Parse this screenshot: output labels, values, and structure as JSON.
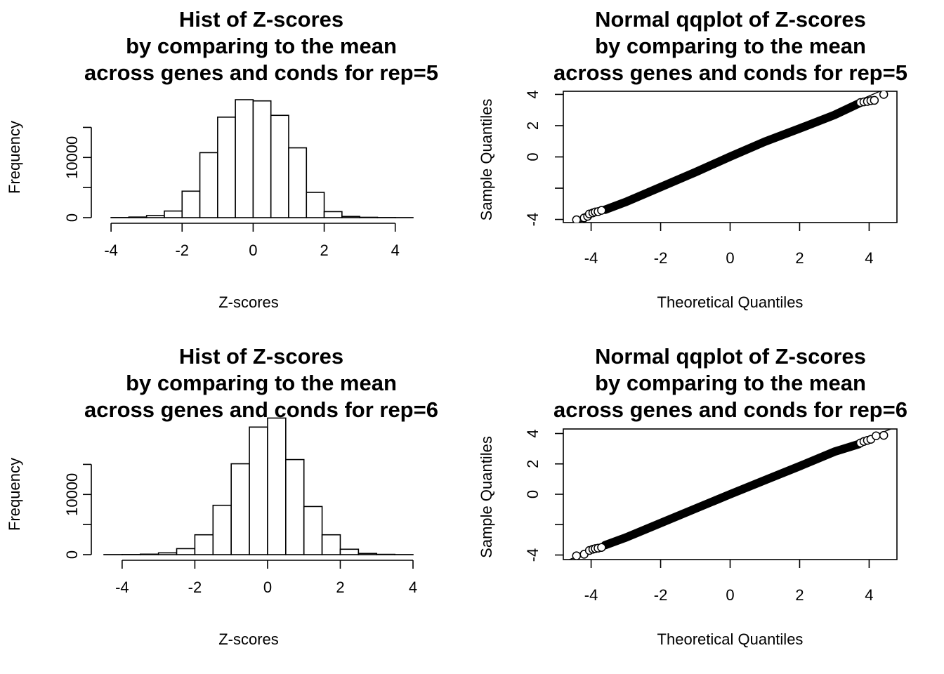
{
  "chart_data": [
    {
      "type": "histogram",
      "panel": "top-left",
      "title": [
        "Hist of Z-scores",
        "by comparing to the mean",
        "across genes and conds for rep=5"
      ],
      "xlabel": "Z-scores",
      "ylabel": "Frequency",
      "xlim": [
        -4.2,
        4.5
      ],
      "ylim": [
        0,
        21000
      ],
      "xticks": [
        -4,
        -2,
        0,
        2,
        4
      ],
      "xtick_labels": [
        "-4",
        "-2",
        "0",
        "2",
        "4"
      ],
      "yticks": [
        0,
        5000,
        10000,
        15000
      ],
      "ytick_labels": [
        "0",
        "",
        "10000",
        ""
      ],
      "bin_edges": [
        -4,
        -3.5,
        -3,
        -2.5,
        -2,
        -1.5,
        -1,
        -0.5,
        0,
        0.5,
        1,
        1.5,
        2,
        2.5,
        3,
        3.5,
        4,
        4.5
      ],
      "values": [
        20,
        100,
        350,
        1100,
        4400,
        10800,
        16700,
        19600,
        19400,
        17000,
        11600,
        4200,
        1000,
        200,
        60,
        20,
        10
      ]
    },
    {
      "type": "qqplot",
      "panel": "top-right",
      "title": [
        "Normal qqplot of Z-scores",
        "by comparing to the mean",
        "across genes and conds for rep=5"
      ],
      "xlabel": "Theoretical Quantiles",
      "ylabel": "Sample Quantiles",
      "xlim": [
        -4.8,
        4.8
      ],
      "ylim": [
        -4.2,
        4.2
      ],
      "xticks": [
        -4,
        -2,
        0,
        2,
        4
      ],
      "xtick_labels": [
        "-4",
        "-2",
        "0",
        "2",
        "4"
      ],
      "yticks": [
        -4,
        -2,
        0,
        2,
        4
      ],
      "ytick_labels": [
        "-4",
        "",
        "0",
        "2",
        "4"
      ],
      "reference_line": {
        "intercept": 0.02,
        "slope": 0.97
      },
      "points": {
        "x": [
          -4.42,
          -4.2,
          -4.1,
          -4.05,
          -3.95,
          -3.88,
          -3.8,
          -3.7,
          3.75,
          3.85,
          3.95,
          4.05,
          4.15,
          4.42
        ],
        "y": [
          -4.02,
          -3.9,
          -3.8,
          -3.65,
          -3.58,
          -3.52,
          -3.5,
          -3.42,
          3.48,
          3.52,
          3.55,
          3.6,
          3.62,
          4.0
        ]
      },
      "body_curve": {
        "x": [
          -3.6,
          -3,
          -2,
          -1,
          0,
          1,
          2,
          3,
          3.7
        ],
        "y": [
          -3.38,
          -2.88,
          -1.93,
          -0.98,
          0.02,
          0.98,
          1.82,
          2.68,
          3.42
        ]
      }
    },
    {
      "type": "histogram",
      "panel": "bottom-left",
      "title": [
        "Hist of Z-scores",
        "by comparing to the mean",
        "across genes and conds for rep=6"
      ],
      "xlabel": "Z-scores",
      "ylabel": "Frequency",
      "xlim": [
        -4.5,
        4.0
      ],
      "ylim": [
        0,
        21000
      ],
      "xticks": [
        -4,
        -2,
        0,
        2,
        4
      ],
      "xtick_labels": [
        "-4",
        "-2",
        "0",
        "2",
        "4"
      ],
      "yticks": [
        0,
        5000,
        10000,
        15000
      ],
      "ytick_labels": [
        "0",
        "",
        "10000",
        ""
      ],
      "bin_edges": [
        -4.5,
        -4,
        -3.5,
        -3,
        -2.5,
        -2,
        -1.5,
        -1,
        -0.5,
        0,
        0.5,
        1,
        1.5,
        2,
        2.5,
        3,
        3.5,
        4
      ],
      "values": [
        10,
        20,
        80,
        300,
        1000,
        3300,
        8200,
        15100,
        21200,
        22700,
        15800,
        8000,
        3300,
        900,
        200,
        50,
        10
      ]
    },
    {
      "type": "qqplot",
      "panel": "bottom-right",
      "title": [
        "Normal qqplot of Z-scores",
        "by comparing to the mean",
        "across genes and conds for rep=6"
      ],
      "xlabel": "Theoretical Quantiles",
      "ylabel": "Sample Quantiles",
      "xlim": [
        -4.8,
        4.8
      ],
      "ylim": [
        -4.3,
        4.3
      ],
      "xticks": [
        -4,
        -2,
        0,
        2,
        4
      ],
      "xtick_labels": [
        "-4",
        "-2",
        "0",
        "2",
        "4"
      ],
      "yticks": [
        -4,
        -2,
        0,
        2,
        4
      ],
      "ytick_labels": [
        "-4",
        "",
        "0",
        "2",
        "4"
      ],
      "reference_line": {
        "intercept": 0.0,
        "slope": 0.93
      },
      "points": {
        "x": [
          -4.42,
          -4.2,
          -4.05,
          -3.95,
          -3.88,
          -3.8,
          -3.7,
          3.75,
          3.85,
          3.95,
          4.05,
          4.2,
          4.42
        ],
        "y": [
          -4.05,
          -3.95,
          -3.7,
          -3.62,
          -3.58,
          -3.55,
          -3.5,
          3.38,
          3.48,
          3.55,
          3.62,
          3.85,
          3.88
        ]
      },
      "body_curve": {
        "x": [
          -3.6,
          -3,
          -2,
          -1,
          0,
          1,
          2,
          3,
          3.7
        ],
        "y": [
          -3.35,
          -2.85,
          -1.9,
          -0.95,
          0.0,
          0.93,
          1.85,
          2.8,
          3.3
        ]
      }
    }
  ]
}
